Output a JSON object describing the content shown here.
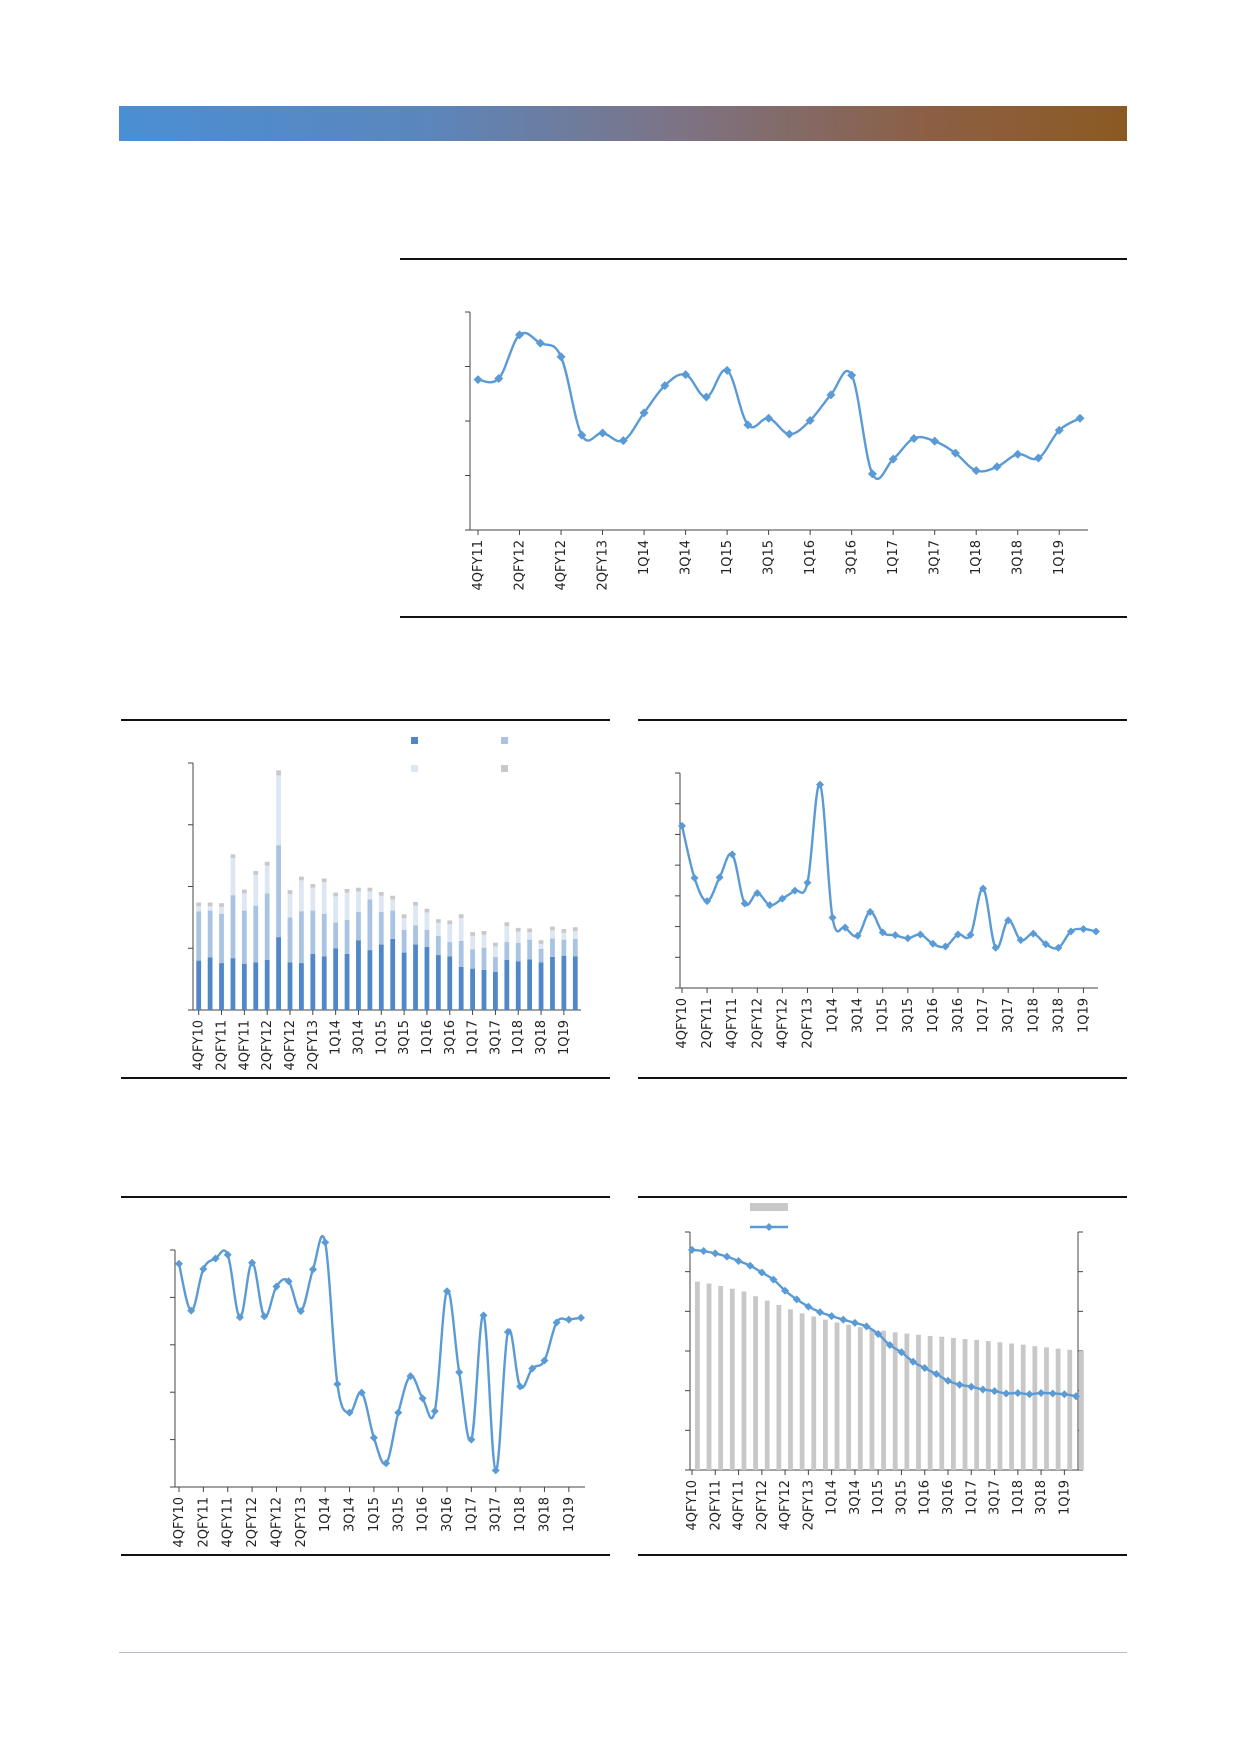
{
  "page": {
    "accent_gradient": [
      "#4a8fd4",
      "#8b5a22"
    ],
    "line_color": "#5b9bd5"
  },
  "chart_data": [
    {
      "id": "chart1",
      "type": "line",
      "categories": [
        "4QFY11",
        "1QFY12",
        "2QFY12",
        "3QFY12",
        "4QFY12",
        "1QFY13",
        "2QFY13",
        "3QFY13",
        "1Q14",
        "2Q14",
        "3Q14",
        "4Q14",
        "1Q15",
        "2Q15",
        "3Q15",
        "4Q15",
        "1Q16",
        "2Q16",
        "3Q16",
        "4Q16",
        "1Q17",
        "2Q17",
        "3Q17",
        "4Q17",
        "1Q18",
        "2Q18",
        "3Q18",
        "4Q18",
        "1Q19",
        "2Q19"
      ],
      "tick_labels": [
        "4QFY11",
        "",
        "2QFY12",
        "",
        "4QFY12",
        "",
        "2QFY13",
        "",
        "1Q14",
        "",
        "3Q14",
        "",
        "1Q15",
        "",
        "3Q15",
        "",
        "1Q16",
        "",
        "3Q16",
        "",
        "1Q17",
        "",
        "3Q17",
        "",
        "1Q18",
        "",
        "3Q18",
        "",
        "1Q19",
        ""
      ],
      "values": [
        2.76,
        2.78,
        3.58,
        3.43,
        3.18,
        1.74,
        1.78,
        1.64,
        2.15,
        2.65,
        2.85,
        2.44,
        2.93,
        1.93,
        2.05,
        1.76,
        2.01,
        2.48,
        2.84,
        1.03,
        1.3,
        1.68,
        1.63,
        1.41,
        1.09,
        1.16,
        1.39,
        1.32,
        1.83,
        2.05
      ],
      "ylim": [
        0,
        4
      ],
      "color": "#5b9bd5"
    },
    {
      "id": "chart2",
      "type": "bar",
      "stacked": true,
      "categories": [
        "4QFY10",
        "1QFY11",
        "2QFY11",
        "3QFY11",
        "4QFY11",
        "1QFY12",
        "2QFY12",
        "3QFY12",
        "4QFY12",
        "1QFY13",
        "2QFY13",
        "3QFY13",
        "1Q14",
        "2Q14",
        "3Q14",
        "4Q14",
        "1Q15",
        "2Q15",
        "3Q15",
        "4Q15",
        "1Q16",
        "2Q16",
        "3Q16",
        "4Q16",
        "1Q17",
        "2Q17",
        "3Q17",
        "4Q17",
        "1Q18",
        "2Q18",
        "3Q18",
        "4Q18",
        "1Q19",
        "2Q19"
      ],
      "tick_labels": [
        "4QFY10",
        "",
        "2QFY11",
        "",
        "4QFY11",
        "",
        "2QFY12",
        "",
        "4QFY12",
        "",
        "2QFY13",
        "",
        "1Q14",
        "",
        "3Q14",
        "",
        "1Q15",
        "",
        "3Q15",
        "",
        "1Q16",
        "",
        "3Q16",
        "",
        "1Q17",
        "",
        "3Q17",
        "",
        "1Q18",
        "",
        "3Q18",
        "",
        "1Q19",
        ""
      ],
      "series": [
        {
          "color": "#4f87c7",
          "values": [
            0.8,
            0.85,
            0.76,
            0.84,
            0.75,
            0.77,
            0.81,
            1.18,
            0.77,
            0.76,
            0.91,
            0.87,
            1.0,
            0.91,
            1.13,
            0.97,
            1.06,
            1.15,
            0.93,
            1.06,
            1.02,
            0.89,
            0.87,
            0.7,
            0.67,
            0.65,
            0.62,
            0.81,
            0.79,
            0.82,
            0.77,
            0.86,
            0.88,
            0.87
          ]
        },
        {
          "color": "#a9c3e3",
          "values": [
            0.8,
            0.76,
            0.8,
            1.02,
            0.86,
            0.92,
            1.08,
            1.49,
            0.73,
            0.84,
            0.7,
            0.69,
            0.42,
            0.55,
            0.46,
            0.82,
            0.53,
            0.46,
            0.37,
            0.31,
            0.28,
            0.31,
            0.23,
            0.42,
            0.31,
            0.36,
            0.24,
            0.29,
            0.3,
            0.32,
            0.22,
            0.3,
            0.26,
            0.28
          ]
        },
        {
          "color": "#dde7f3",
          "values": [
            0.08,
            0.07,
            0.11,
            0.6,
            0.28,
            0.5,
            0.45,
            1.13,
            0.38,
            0.5,
            0.37,
            0.51,
            0.42,
            0.44,
            0.33,
            0.13,
            0.26,
            0.18,
            0.19,
            0.32,
            0.28,
            0.21,
            0.29,
            0.37,
            0.22,
            0.21,
            0.17,
            0.26,
            0.18,
            0.12,
            0.08,
            0.13,
            0.11,
            0.13
          ]
        },
        {
          "color": "#c8c8c8",
          "values": [
            0.06,
            0.06,
            0.06,
            0.06,
            0.06,
            0.06,
            0.06,
            0.08,
            0.06,
            0.06,
            0.06,
            0.06,
            0.06,
            0.06,
            0.06,
            0.06,
            0.06,
            0.06,
            0.06,
            0.06,
            0.06,
            0.06,
            0.06,
            0.06,
            0.06,
            0.06,
            0.06,
            0.06,
            0.06,
            0.06,
            0.06,
            0.06,
            0.06,
            0.06
          ]
        }
      ],
      "ylim": [
        0,
        4
      ],
      "legend_position": "top-right"
    },
    {
      "id": "chart3",
      "type": "line",
      "categories": [
        "4QFY10",
        "1QFY11",
        "2QFY11",
        "3QFY11",
        "4QFY11",
        "1QFY12",
        "2QFY12",
        "3QFY12",
        "4QFY12",
        "1QFY13",
        "2QFY13",
        "3QFY13",
        "1Q14",
        "2Q14",
        "3Q14",
        "4Q14",
        "1Q15",
        "2Q15",
        "3Q15",
        "4Q15",
        "1Q16",
        "2Q16",
        "3Q16",
        "4Q16",
        "1Q17",
        "2Q17",
        "3Q17",
        "4Q17",
        "1Q18",
        "2Q18",
        "3Q18",
        "4Q18",
        "1Q19",
        "2Q19"
      ],
      "tick_labels": [
        "4QFY10",
        "",
        "2QFY11",
        "",
        "4QFY11",
        "",
        "2QFY12",
        "",
        "4QFY12",
        "",
        "2QFY13",
        "",
        "1Q14",
        "",
        "3Q14",
        "",
        "1Q15",
        "",
        "3Q15",
        "",
        "1Q16",
        "",
        "3Q16",
        "",
        "1Q17",
        "",
        "3Q17",
        "",
        "1Q18",
        "",
        "3Q18",
        "",
        "1Q19",
        ""
      ],
      "values": [
        5.28,
        3.58,
        2.83,
        3.6,
        4.35,
        2.75,
        3.09,
        2.7,
        2.91,
        3.17,
        3.43,
        6.62,
        2.29,
        1.97,
        1.7,
        2.48,
        1.81,
        1.72,
        1.62,
        1.74,
        1.44,
        1.35,
        1.74,
        1.73,
        3.24,
        1.31,
        2.2,
        1.56,
        1.77,
        1.43,
        1.31,
        1.84,
        1.92,
        1.84
      ],
      "ylim": [
        0,
        7
      ],
      "color": "#5b9bd5"
    },
    {
      "id": "chart4",
      "type": "line",
      "categories": [
        "4QFY10",
        "1QFY11",
        "2QFY11",
        "3QFY11",
        "4QFY11",
        "1QFY12",
        "2QFY12",
        "3QFY12",
        "4QFY12",
        "1QFY13",
        "2QFY13",
        "3QFY13",
        "1Q14",
        "2Q14",
        "3Q14",
        "4Q14",
        "1Q15",
        "2Q15",
        "3Q15",
        "4Q15",
        "1Q16",
        "2Q16",
        "3Q16",
        "4Q16",
        "1Q17",
        "2Q17",
        "3Q17",
        "4Q17",
        "1Q18",
        "2Q18",
        "3Q18",
        "4Q18",
        "1Q19",
        "2Q19"
      ],
      "tick_labels": [
        "4QFY10",
        "",
        "2QFY11",
        "",
        "4QFY11",
        "",
        "2QFY12",
        "",
        "4QFY12",
        "",
        "2QFY13",
        "",
        "1Q14",
        "",
        "3Q14",
        "",
        "1Q15",
        "",
        "3Q15",
        "",
        "1Q16",
        "",
        "3Q16",
        "",
        "1Q17",
        "",
        "3Q17",
        "",
        "1Q18",
        "",
        "3Q18",
        "",
        "1Q19",
        ""
      ],
      "values": [
        4.71,
        3.72,
        4.6,
        4.82,
        4.9,
        3.58,
        4.73,
        3.6,
        4.23,
        4.34,
        3.71,
        4.59,
        5.16,
        2.17,
        1.57,
        1.99,
        1.04,
        0.5,
        1.57,
        2.34,
        1.87,
        1.6,
        4.13,
        2.42,
        1.0,
        3.62,
        0.35,
        3.27,
        2.12,
        2.5,
        2.67,
        3.47,
        3.53,
        3.57
      ],
      "ylim": [
        0,
        5
      ],
      "color": "#5b9bd5"
    },
    {
      "id": "chart5",
      "type": "bar+line",
      "categories": [
        "4QFY10",
        "1QFY11",
        "2QFY11",
        "3QFY11",
        "4QFY11",
        "1QFY12",
        "2QFY12",
        "3QFY12",
        "4QFY12",
        "1QFY13",
        "2QFY13",
        "3QFY13",
        "1Q14",
        "2Q14",
        "3Q14",
        "4Q14",
        "1Q15",
        "2Q15",
        "3Q15",
        "4Q15",
        "1Q16",
        "2Q16",
        "3Q16",
        "4Q16",
        "1Q17",
        "2Q17",
        "3Q17",
        "4Q17",
        "1Q18",
        "2Q18",
        "3Q18",
        "4Q18",
        "1Q19",
        "2Q19"
      ],
      "tick_labels": [
        "4QFY10",
        "",
        "2QFY11",
        "",
        "4QFY11",
        "",
        "2QFY12",
        "",
        "4QFY12",
        "",
        "2QFY13",
        "",
        "1Q14",
        "",
        "3Q14",
        "",
        "1Q15",
        "",
        "3Q15",
        "",
        "1Q16",
        "",
        "3Q16",
        "",
        "1Q17",
        "",
        "3Q17",
        "",
        "1Q18",
        "",
        "3Q18",
        "",
        "1Q19",
        ""
      ],
      "series": [
        {
          "type": "bar",
          "color": "#c8c8c8",
          "values": [
            4.75,
            4.7,
            4.64,
            4.57,
            4.5,
            4.38,
            4.27,
            4.16,
            4.05,
            3.95,
            3.87,
            3.79,
            3.72,
            3.66,
            3.6,
            3.55,
            3.51,
            3.47,
            3.44,
            3.41,
            3.38,
            3.36,
            3.33,
            3.3,
            3.28,
            3.25,
            3.22,
            3.19,
            3.16,
            3.12,
            3.09,
            3.06,
            3.03,
            3.0
          ]
        },
        {
          "type": "line",
          "color": "#5b9bd5",
          "values": [
            5.55,
            5.52,
            5.46,
            5.38,
            5.27,
            5.15,
            4.98,
            4.8,
            4.52,
            4.3,
            4.12,
            3.98,
            3.88,
            3.79,
            3.71,
            3.62,
            3.43,
            3.15,
            2.97,
            2.73,
            2.57,
            2.42,
            2.25,
            2.15,
            2.1,
            2.03,
            1.99,
            1.93,
            1.94,
            1.91,
            1.94,
            1.93,
            1.91,
            1.86
          ]
        }
      ],
      "ylim": [
        0,
        6
      ],
      "legend_position": "top-left"
    }
  ]
}
